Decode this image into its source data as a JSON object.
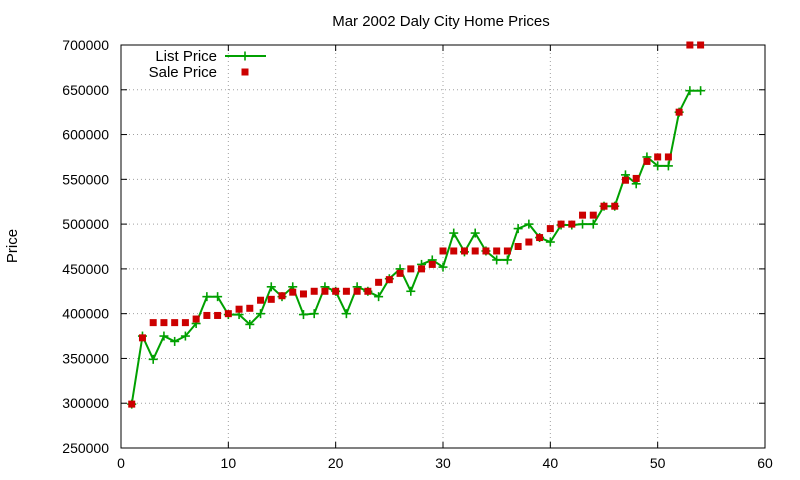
{
  "chart_data": {
    "type": "scatter",
    "title": "Mar 2002 Daly City Home Prices",
    "xlabel": "",
    "ylabel": "Price",
    "xlim": [
      0,
      60
    ],
    "ylim": [
      250000,
      700000
    ],
    "xticks": [
      "0",
      "10",
      "20",
      "30",
      "40",
      "50",
      "60"
    ],
    "yticks": [
      "250000",
      "300000",
      "350000",
      "400000",
      "450000",
      "500000",
      "550000",
      "600000",
      "650000",
      "700000"
    ],
    "grid": true,
    "legend_position": "top-left",
    "series": [
      {
        "name": "List Price",
        "style": "line-with-plus-markers",
        "color": "#00a000",
        "x": [
          1,
          2,
          3,
          4,
          5,
          6,
          7,
          8,
          9,
          10,
          11,
          12,
          13,
          14,
          15,
          16,
          17,
          18,
          19,
          20,
          21,
          22,
          23,
          24,
          25,
          26,
          27,
          28,
          29,
          30,
          31,
          32,
          33,
          34,
          35,
          36,
          37,
          38,
          39,
          40,
          41,
          42,
          43,
          44,
          45,
          46,
          47,
          48,
          49,
          50,
          51,
          52,
          53,
          54
        ],
        "y": [
          299000,
          375000,
          349000,
          375000,
          369000,
          375000,
          389000,
          419000,
          419000,
          399000,
          399000,
          388000,
          400000,
          430000,
          419000,
          430000,
          399000,
          400000,
          430000,
          425000,
          400000,
          430000,
          425000,
          419000,
          439000,
          450000,
          425000,
          455000,
          460000,
          452000,
          490000,
          469000,
          490000,
          470000,
          460000,
          460000,
          495000,
          500000,
          485000,
          480000,
          499000,
          499000,
          500000,
          500000,
          520000,
          520000,
          555000,
          545000,
          575000,
          565000,
          565000,
          625000,
          649000,
          649000
        ]
      },
      {
        "name": "Sale Price",
        "style": "square-markers",
        "color": "#cc0000",
        "x": [
          1,
          2,
          3,
          4,
          5,
          6,
          7,
          8,
          9,
          10,
          11,
          12,
          13,
          14,
          15,
          16,
          17,
          18,
          19,
          20,
          21,
          22,
          23,
          24,
          25,
          26,
          27,
          28,
          29,
          30,
          31,
          32,
          33,
          34,
          35,
          36,
          37,
          38,
          39,
          40,
          41,
          42,
          43,
          44,
          45,
          46,
          47,
          48,
          49,
          50,
          51,
          52,
          53,
          54
        ],
        "y": [
          299000,
          373000,
          390000,
          390000,
          390000,
          390000,
          394000,
          398000,
          398000,
          400000,
          405000,
          406000,
          415000,
          416000,
          420000,
          424000,
          422000,
          425000,
          425000,
          425000,
          425000,
          425000,
          425000,
          435000,
          438000,
          445000,
          450000,
          450000,
          455000,
          470000,
          470000,
          470000,
          470000,
          470000,
          470000,
          470000,
          475000,
          480000,
          485000,
          495000,
          500000,
          500000,
          510000,
          510000,
          520000,
          520000,
          549000,
          551000,
          570000,
          575000,
          575000,
          625000,
          700000,
          700000
        ]
      }
    ]
  }
}
